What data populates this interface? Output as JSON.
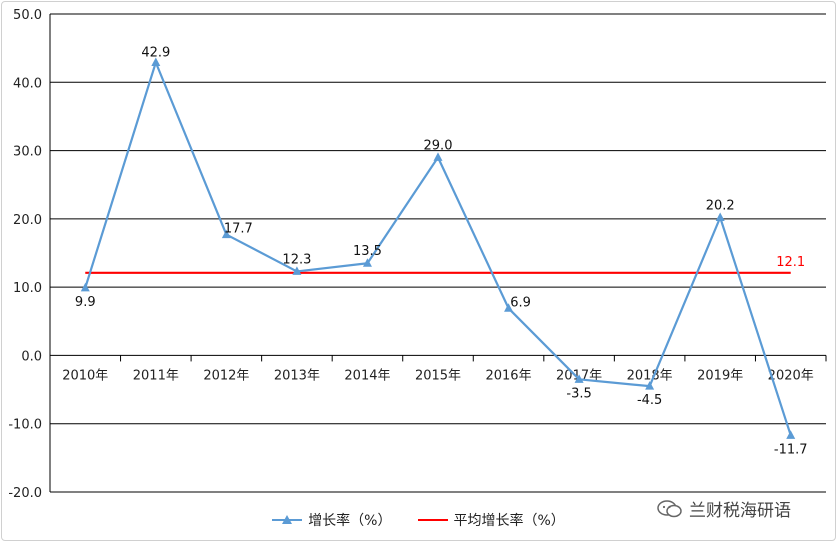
{
  "chart_data": {
    "type": "line",
    "categories": [
      "2010年",
      "2011年",
      "2012年",
      "2013年",
      "2014年",
      "2015年",
      "2016年",
      "2017年",
      "2018年",
      "2019年",
      "2020年"
    ],
    "series": [
      {
        "name": "增长率（%）",
        "values": [
          9.9,
          42.9,
          17.7,
          12.3,
          13.5,
          29.0,
          6.9,
          -3.5,
          -4.5,
          20.2,
          -11.7
        ],
        "color": "#5b9bd5",
        "marker": "triangle"
      },
      {
        "name": "平均增长率（%）",
        "values": [
          12.1,
          12.1,
          12.1,
          12.1,
          12.1,
          12.1,
          12.1,
          12.1,
          12.1,
          12.1,
          12.1
        ],
        "color": "#ff0000",
        "label": "12.1"
      }
    ],
    "y_tick_labels": [
      "50.0",
      "40.0",
      "30.0",
      "20.0",
      "10.0",
      "0.0",
      "-10.0",
      "-20.0"
    ],
    "ylim": [
      -20,
      50
    ],
    "grid": true,
    "legend": "bottom"
  },
  "watermark": {
    "text": "兰财税海研语"
  }
}
